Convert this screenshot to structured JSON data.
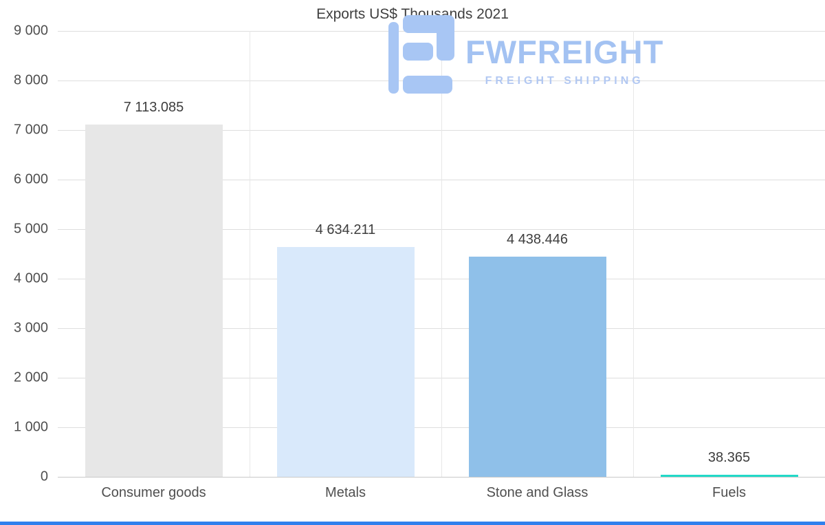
{
  "logo": {
    "brand": "FWFREIGHT",
    "tagline": "FREIGHT SHIPPING",
    "brand_color": "#a3c2f2",
    "tagline_color": "#b2c8f2",
    "icon_color": "#a8c6f4"
  },
  "accent_bar_color": "#2f80ed",
  "axis": {
    "text_color": "#4f4f4f",
    "grid_color": "#dedede",
    "zero_line_color": "#c9c9c9",
    "vgrid_color": "#e7e7e7"
  },
  "chart_data": {
    "type": "bar",
    "title": "Exports US$ Thousands 2021",
    "categories": [
      "Consumer goods",
      "Metals",
      "Stone and Glass",
      "Fuels"
    ],
    "values": [
      7113.085,
      4634.211,
      4438.446,
      38.365
    ],
    "value_labels": [
      "7 113.085",
      "4 634.211",
      "4 438.446",
      "38.365"
    ],
    "bar_colors": [
      "#e7e7e7",
      "#d9e9fb",
      "#8fc0e9",
      "#22d9c8"
    ],
    "ylim": [
      0,
      9000
    ],
    "ytick_step": 1000,
    "ytick_labels": [
      "0",
      "1 000",
      "2 000",
      "3 000",
      "4 000",
      "5 000",
      "6 000",
      "7 000",
      "8 000",
      "9 000"
    ],
    "grid": true,
    "legend": false,
    "xlabel": "",
    "ylabel": ""
  }
}
